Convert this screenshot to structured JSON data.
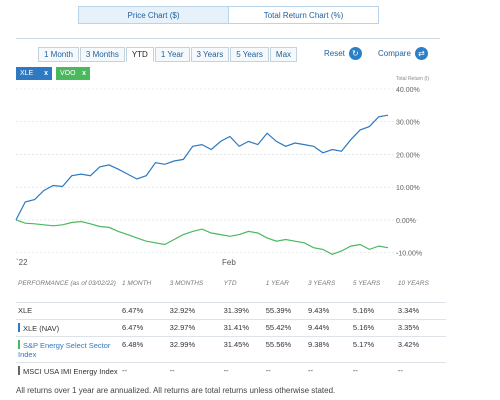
{
  "chart_toggle": {
    "price_label": "Price Chart ($)",
    "total_return_label": "Total Return Chart (%)"
  },
  "ranges": [
    {
      "label": "1 Month"
    },
    {
      "label": "3 Months"
    },
    {
      "label": "YTD"
    },
    {
      "label": "1 Year"
    },
    {
      "label": "3 Years"
    },
    {
      "label": "5 Years"
    },
    {
      "label": "Max"
    }
  ],
  "reset_label": "Reset",
  "compare_label": "Compare",
  "chips": [
    {
      "label": "XLE",
      "close": "x"
    },
    {
      "label": "VOO",
      "close": "x"
    }
  ],
  "colors": {
    "xle": "#2f79c2",
    "voo": "#4bb85e",
    "msci": "#666666",
    "link": "#1f5f9e"
  },
  "chart_data": {
    "type": "line",
    "y_axis_title": "Total Return (I)",
    "y_ticks": [
      "40.00%",
      "30.00%",
      "20.00%",
      "10.00%",
      "0.00%",
      "-10.00%"
    ],
    "ylim": [
      -15,
      40
    ],
    "x_ticks": [
      "`22",
      "Feb"
    ],
    "series": [
      {
        "name": "XLE",
        "values": [
          0,
          5.5,
          6.2,
          9,
          10.5,
          10.2,
          13.5,
          14,
          13.5,
          16.2,
          16.8,
          15.5,
          14,
          12.5,
          13.5,
          17.5,
          17,
          18,
          18.5,
          22.5,
          23,
          21.5,
          24,
          25.5,
          22.5,
          24,
          23,
          26.5,
          24,
          22.5,
          23.5,
          23,
          22.5,
          20.5,
          21.5,
          21,
          24.5,
          27.5,
          28.5,
          31.5,
          32
        ]
      },
      {
        "name": "VOO",
        "values": [
          0,
          -1,
          -1.2,
          -1.5,
          -1.8,
          -1.5,
          -0.8,
          -0.5,
          -1.2,
          -2,
          -2.3,
          -3.5,
          -4.5,
          -5.5,
          -6.5,
          -7,
          -7.5,
          -6,
          -4.5,
          -3.5,
          -2.8,
          -4,
          -4.5,
          -5,
          -4.5,
          -3.5,
          -4,
          -5.5,
          -6.5,
          -6,
          -6.5,
          -7,
          -8.5,
          -9,
          -10.5,
          -9.5,
          -8,
          -7.5,
          -9,
          -8,
          -8.5
        ]
      }
    ]
  },
  "performance": {
    "header": {
      "label": "PERFORMANCE (as of 03/02/22)",
      "columns": [
        "1 MONTH",
        "3 MONTHS",
        "YTD",
        "1 YEAR",
        "3 YEARS",
        "5 YEARS",
        "10 YEARS"
      ]
    },
    "rows": [
      {
        "name": "XLE",
        "values": [
          "6.47%",
          "32.92%",
          "31.39%",
          "55.39%",
          "9.43%",
          "5.16%",
          "3.34%"
        ]
      },
      {
        "name": "XLE (NAV)",
        "values": [
          "6.47%",
          "32.97%",
          "31.41%",
          "55.42%",
          "9.44%",
          "5.16%",
          "3.35%"
        ]
      },
      {
        "name": "S&P Energy Select Sector Index",
        "values": [
          "6.48%",
          "32.99%",
          "31.45%",
          "55.56%",
          "9.38%",
          "5.17%",
          "3.42%"
        ]
      },
      {
        "name": "MSCI USA IMI Energy Index",
        "values": [
          "--",
          "--",
          "--",
          "--",
          "--",
          "--",
          "--"
        ]
      }
    ]
  },
  "footnote": "All returns over 1 year are annualized. All returns are total returns unless otherwise stated."
}
